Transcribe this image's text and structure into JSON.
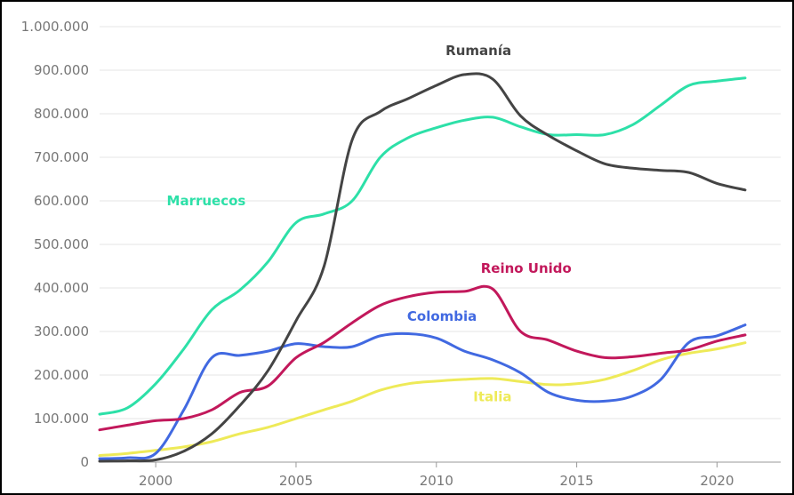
{
  "chart_data": {
    "type": "line",
    "title": "",
    "xlabel": "",
    "ylabel": "",
    "xlim": [
      1998,
      2021.5
    ],
    "ylim": [
      0,
      1000000
    ],
    "grid": true,
    "legend": "none",
    "x_ticks": [
      2000,
      2005,
      2010,
      2015,
      2020
    ],
    "x_tick_labels": [
      "2000",
      "2005",
      "2010",
      "2015",
      "2020"
    ],
    "y_ticks": [
      0,
      100000,
      200000,
      300000,
      400000,
      500000,
      600000,
      700000,
      800000,
      900000,
      1000000
    ],
    "y_tick_labels": [
      "0",
      "100.000",
      "200.000",
      "300.000",
      "400.000",
      "500.000",
      "600.000",
      "700.000",
      "800.000",
      "900.000",
      "1.000.000"
    ],
    "x": [
      1998,
      1999,
      2000,
      2001,
      2002,
      2003,
      2004,
      2005,
      2006,
      2007,
      2008,
      2009,
      2010,
      2011,
      2012,
      2013,
      2014,
      2015,
      2016,
      2017,
      2018,
      2019,
      2020,
      2021
    ],
    "series": [
      {
        "name": "Rumanía",
        "color": "#444444",
        "label_pos": [
          2011.5,
          935000
        ],
        "values": [
          2000,
          3000,
          5000,
          25000,
          65000,
          130000,
          210000,
          325000,
          450000,
          740000,
          805000,
          835000,
          865000,
          890000,
          880000,
          795000,
          750000,
          715000,
          685000,
          675000,
          670000,
          665000,
          640000,
          625000
        ]
      },
      {
        "name": "Marruecos",
        "color": "#2de0a8",
        "label_pos": [
          2001.8,
          590000
        ],
        "values": [
          110000,
          125000,
          180000,
          260000,
          350000,
          395000,
          460000,
          550000,
          570000,
          600000,
          700000,
          745000,
          768000,
          785000,
          792000,
          770000,
          752000,
          752000,
          752000,
          775000,
          820000,
          865000,
          875000,
          882000
        ]
      },
      {
        "name": "Reino Unido",
        "color": "#c2185b",
        "label_pos": [
          2013.2,
          435000
        ],
        "values": [
          74000,
          85000,
          95000,
          100000,
          120000,
          160000,
          175000,
          240000,
          275000,
          320000,
          360000,
          380000,
          390000,
          392000,
          398000,
          300000,
          280000,
          255000,
          240000,
          242000,
          250000,
          258000,
          278000,
          292000
        ]
      },
      {
        "name": "Colombia",
        "color": "#4169e1",
        "label_pos": [
          2010.2,
          325000
        ],
        "values": [
          8000,
          10000,
          20000,
          120000,
          240000,
          245000,
          255000,
          272000,
          265000,
          265000,
          290000,
          295000,
          285000,
          255000,
          235000,
          205000,
          160000,
          142000,
          140000,
          152000,
          190000,
          275000,
          290000,
          315000
        ]
      },
      {
        "name": "Italia",
        "color": "#eeea58",
        "label_pos": [
          2012,
          140000
        ],
        "values": [
          15000,
          20000,
          27000,
          35000,
          47000,
          65000,
          80000,
          100000,
          120000,
          140000,
          165000,
          180000,
          186000,
          190000,
          192000,
          185000,
          178000,
          180000,
          190000,
          210000,
          235000,
          250000,
          260000,
          274000
        ]
      }
    ]
  }
}
